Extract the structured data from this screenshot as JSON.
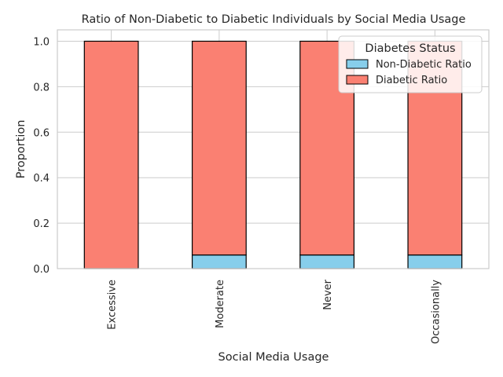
{
  "chart_data": {
    "type": "bar",
    "stacked": true,
    "title": "Ratio of Non-Diabetic to Diabetic Individuals by Social Media Usage",
    "xlabel": "Social Media Usage",
    "ylabel": "Proportion",
    "categories": [
      "Excessive",
      "Moderate",
      "Never",
      "Occasionally"
    ],
    "series": [
      {
        "name": "Non-Diabetic Ratio",
        "values": [
          0.0,
          0.06,
          0.06,
          0.06
        ],
        "color": "#87ceeb"
      },
      {
        "name": "Diabetic Ratio",
        "values": [
          1.0,
          0.94,
          0.94,
          0.94
        ],
        "color": "#fa8072"
      }
    ],
    "ylim": [
      0,
      1.05
    ],
    "yticks": [
      0.0,
      0.2,
      0.4,
      0.6,
      0.8,
      1.0
    ],
    "ytick_labels": [
      "0.0",
      "0.2",
      "0.4",
      "0.6",
      "0.8",
      "1.0"
    ],
    "grid": true,
    "legend": {
      "title": "Diabetes Status",
      "placement": "top-right"
    },
    "bar_edge_color": "#000000"
  }
}
